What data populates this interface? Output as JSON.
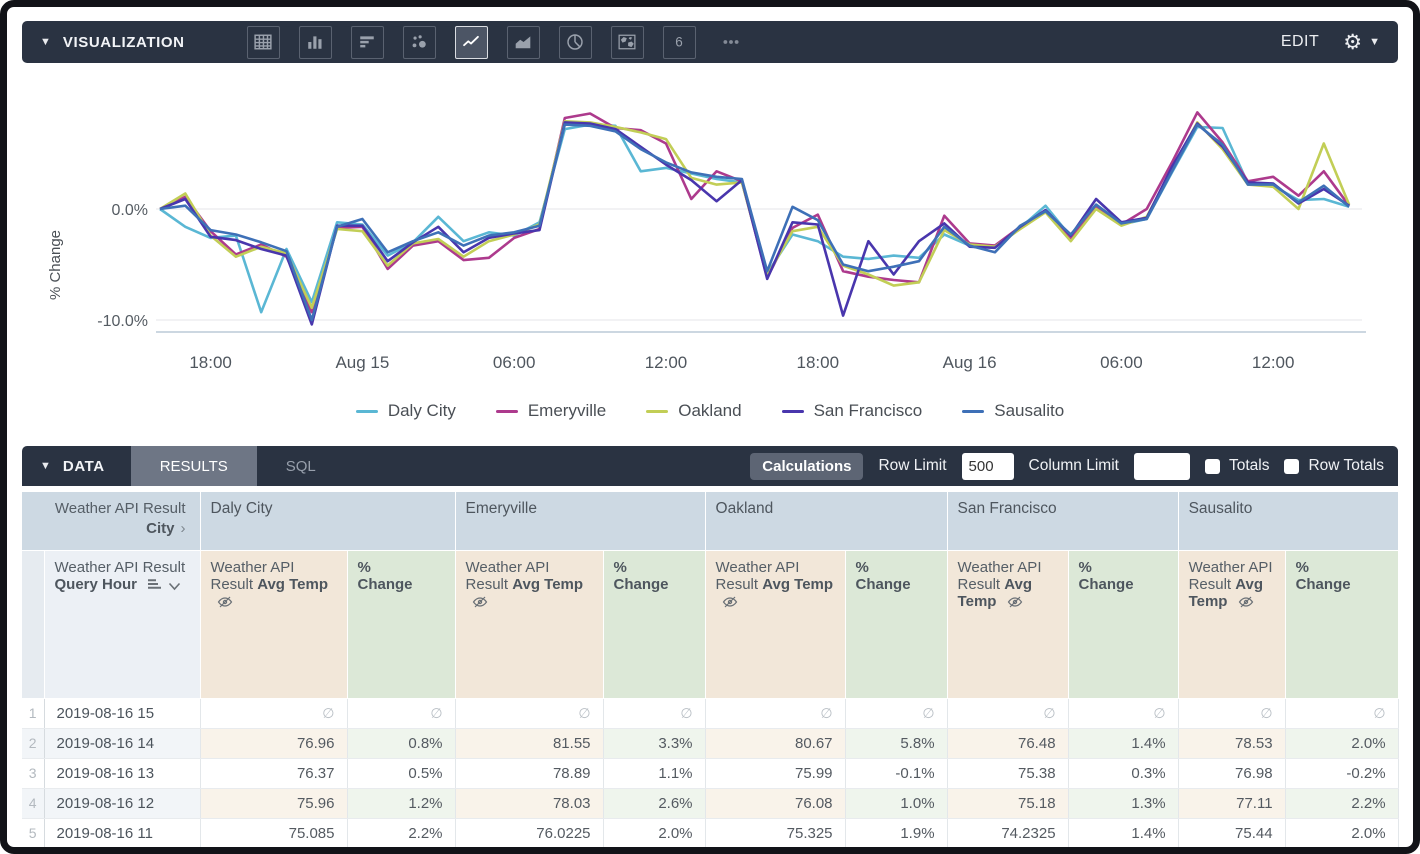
{
  "viz_panel": {
    "title": "VISUALIZATION",
    "edit_label": "EDIT",
    "icons": [
      {
        "name": "table-icon",
        "selected": false
      },
      {
        "name": "column-chart-icon",
        "selected": false
      },
      {
        "name": "bar-chart-icon",
        "selected": false
      },
      {
        "name": "scatter-chart-icon",
        "selected": false
      },
      {
        "name": "line-chart-icon",
        "selected": true
      },
      {
        "name": "area-chart-icon",
        "selected": false
      },
      {
        "name": "pie-chart-icon",
        "selected": false
      },
      {
        "name": "map-chart-icon",
        "selected": false
      },
      {
        "name": "single-value-icon",
        "selected": false
      },
      {
        "name": "more-options-icon",
        "selected": false
      }
    ]
  },
  "chart_data": {
    "type": "line",
    "title": "",
    "xlabel": "",
    "ylabel": "% Change",
    "ylim": [
      -11,
      9.5
    ],
    "grid": "horizontal",
    "legend_position": "bottom",
    "y_ticks": [
      {
        "value": 0,
        "label": "0.0%"
      },
      {
        "value": -10,
        "label": "-10.0%"
      }
    ],
    "x_ticks": [
      {
        "index": 2,
        "label": "18:00"
      },
      {
        "index": 8,
        "label": "Aug 15"
      },
      {
        "index": 14,
        "label": "06:00"
      },
      {
        "index": 20,
        "label": "12:00"
      },
      {
        "index": 26,
        "label": "18:00"
      },
      {
        "index": 32,
        "label": "Aug 16"
      },
      {
        "index": 38,
        "label": "06:00"
      },
      {
        "index": 44,
        "label": "12:00"
      }
    ],
    "series": [
      {
        "name": "Daly City",
        "color": "#5ab7d4",
        "values": [
          0,
          -1.6,
          -2.6,
          -2.4,
          -9.3,
          -3.6,
          -8.4,
          -1.2,
          -1.4,
          -4.2,
          -3.0,
          -0.7,
          -2.9,
          -2.1,
          -2.4,
          -1.2,
          7.2,
          7.6,
          7.5,
          3.4,
          3.7,
          3.2,
          2.7,
          2.4,
          -5.8,
          -2.3,
          -2.9,
          -4.3,
          -4.5,
          -4.2,
          -4.4,
          -2.3,
          -3.3,
          -3.4,
          -1.7,
          0.3,
          -2.5,
          0.3,
          -1.4,
          -0.9,
          3.3,
          7.4,
          7.3,
          2.3,
          2.1,
          0.8,
          0.9,
          0.2
        ]
      },
      {
        "name": "Emeryville",
        "color": "#ad3a8d",
        "values": [
          0,
          1.1,
          -2.0,
          -4.1,
          -3.2,
          -4.3,
          -9.3,
          -1.7,
          -1.6,
          -5.4,
          -3.3,
          -2.9,
          -4.6,
          -4.4,
          -2.6,
          -1.8,
          8.2,
          8.6,
          7.3,
          7.1,
          5.9,
          0.9,
          3.4,
          2.5,
          -6.2,
          -1.7,
          -0.5,
          -5.6,
          -6.1,
          -6.4,
          -6.6,
          -0.6,
          -3.1,
          -3.3,
          -1.6,
          -0.2,
          -2.6,
          0.2,
          -1.4,
          0.0,
          4.2,
          8.7,
          6.0,
          2.5,
          2.9,
          1.2,
          3.4,
          0.3
        ]
      },
      {
        "name": "Oakland",
        "color": "#c2ce56",
        "values": [
          0,
          1.4,
          -2.4,
          -4.3,
          -3.4,
          -4.0,
          -8.9,
          -1.8,
          -2.0,
          -5.1,
          -3.1,
          -2.7,
          -4.3,
          -2.9,
          -2.3,
          -1.4,
          7.9,
          7.8,
          7.4,
          6.9,
          6.3,
          2.8,
          2.2,
          2.4,
          -6.0,
          -2.0,
          -1.6,
          -5.1,
          -5.9,
          -6.9,
          -6.6,
          -1.9,
          -3.2,
          -3.4,
          -1.8,
          -0.3,
          -2.9,
          0.0,
          -1.5,
          -0.7,
          3.6,
          7.8,
          5.4,
          2.2,
          2.0,
          0.0,
          5.9,
          0.4
        ]
      },
      {
        "name": "San Francisco",
        "color": "#4936ad",
        "values": [
          0,
          0.9,
          -2.5,
          -2.8,
          -3.6,
          -4.2,
          -10.4,
          -1.5,
          -1.5,
          -4.7,
          -3.0,
          -1.6,
          -3.9,
          -2.6,
          -2.2,
          -1.9,
          7.8,
          7.7,
          7.2,
          5.6,
          4.0,
          2.6,
          0.7,
          2.6,
          -6.3,
          -1.2,
          -1.4,
          -9.6,
          -2.9,
          -5.9,
          -2.9,
          -1.3,
          -3.4,
          -3.5,
          -1.6,
          -0.1,
          -2.4,
          0.9,
          -1.2,
          -0.8,
          3.8,
          7.7,
          5.6,
          2.4,
          2.3,
          0.5,
          1.8,
          0.3
        ]
      },
      {
        "name": "Sausalito",
        "color": "#3e70b7",
        "values": [
          0,
          0.3,
          -1.9,
          -2.3,
          -3.0,
          -3.8,
          -10.0,
          -1.6,
          -0.9,
          -3.9,
          -2.9,
          -2.1,
          -3.3,
          -2.4,
          -2.1,
          -1.5,
          7.6,
          7.5,
          7.0,
          5.4,
          4.2,
          3.3,
          2.9,
          2.7,
          -5.6,
          0.2,
          -1.0,
          -5.0,
          -5.6,
          -5.2,
          -4.7,
          -1.6,
          -3.3,
          -3.9,
          -1.5,
          -0.2,
          -2.3,
          0.4,
          -1.3,
          -0.9,
          3.4,
          7.6,
          5.8,
          2.2,
          2.2,
          0.6,
          2.1,
          0.2
        ]
      }
    ]
  },
  "data_panel": {
    "title": "DATA",
    "tabs": {
      "results": "RESULTS",
      "sql": "SQL"
    },
    "calculations_label": "Calculations",
    "row_limit_label": "Row Limit",
    "row_limit_value": "500",
    "column_limit_label": "Column Limit",
    "column_limit_value": "",
    "totals_label": "Totals",
    "row_totals_label": "Row Totals"
  },
  "table": {
    "corner_line1": "Weather API Result",
    "corner_line2": "City",
    "corner_chevron": "›",
    "hour_prefix": "Weather API Result",
    "hour_bold": "Query Hour",
    "measure_prefix": "Weather API Result",
    "measure_bold": "Avg Temp",
    "pct_label": "% Change",
    "null_symbol": "∅",
    "cities": [
      "Daly City",
      "Emeryville",
      "Oakland",
      "San Francisco",
      "Sausalito"
    ],
    "rows": [
      {
        "num": "1",
        "hour": "2019-08-16 15",
        "cells": [
          null,
          null,
          null,
          null,
          null,
          null,
          null,
          null,
          null,
          null
        ]
      },
      {
        "num": "2",
        "hour": "2019-08-16 14",
        "cells": [
          "76.96",
          "0.8%",
          "81.55",
          "3.3%",
          "80.67",
          "5.8%",
          "76.48",
          "1.4%",
          "78.53",
          "2.0%"
        ]
      },
      {
        "num": "3",
        "hour": "2019-08-16 13",
        "cells": [
          "76.37",
          "0.5%",
          "78.89",
          "1.1%",
          "75.99",
          "-0.1%",
          "75.38",
          "0.3%",
          "76.98",
          "-0.2%"
        ]
      },
      {
        "num": "4",
        "hour": "2019-08-16 12",
        "cells": [
          "75.96",
          "1.2%",
          "78.03",
          "2.6%",
          "76.08",
          "1.0%",
          "75.18",
          "1.3%",
          "77.11",
          "2.2%"
        ]
      },
      {
        "num": "5",
        "hour": "2019-08-16 11",
        "cells": [
          "75.085",
          "2.2%",
          "76.0225",
          "2.0%",
          "75.325",
          "1.9%",
          "74.2325",
          "1.4%",
          "75.44",
          "2.0%"
        ]
      }
    ]
  }
}
